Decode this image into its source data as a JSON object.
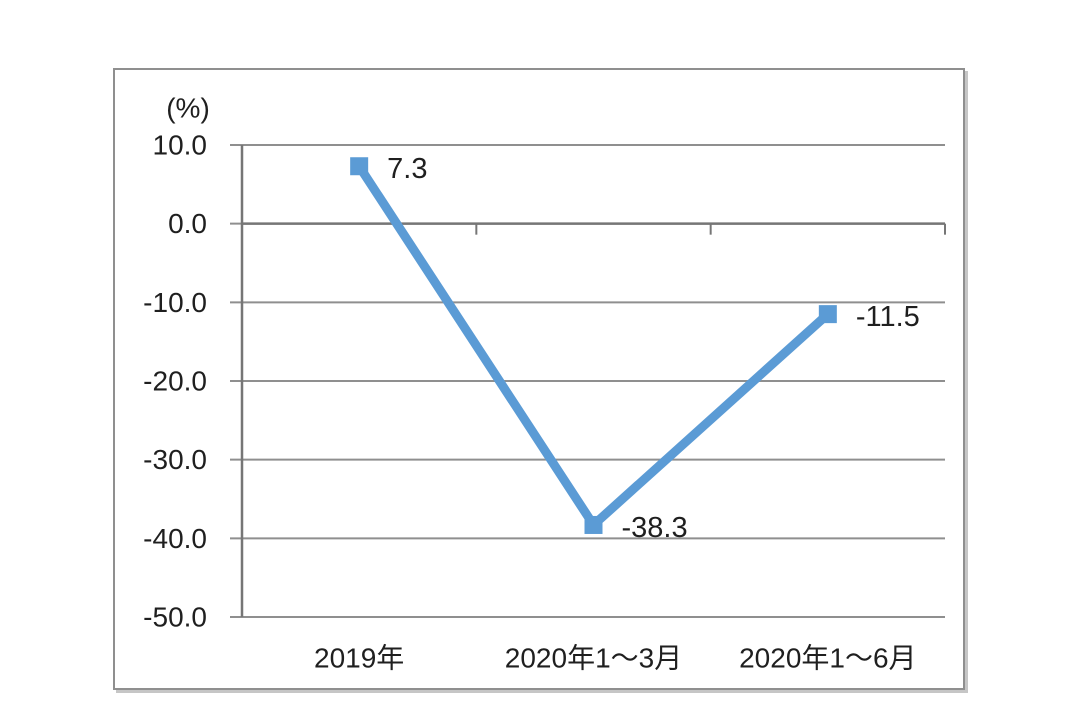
{
  "chart_data": {
    "type": "line",
    "title": "",
    "unit_label": "(%)",
    "categories": [
      "2019年",
      "2020年1～3月",
      "2020年1～6月"
    ],
    "values": [
      7.3,
      -38.3,
      -11.5
    ],
    "data_labels": [
      "7.3",
      "-38.3",
      "-11.5"
    ],
    "ylim": [
      -50,
      10
    ],
    "ytick_step": 10,
    "ytick_labels": [
      "10.0",
      "0.0",
      "-10.0",
      "-20.0",
      "-30.0",
      "-40.0",
      "-50.0"
    ],
    "grid": true,
    "legend": "none",
    "marker": "square",
    "colors": {
      "line": "#5B9BD5",
      "marker": "#5B9BD5",
      "grid": "#8f8f8f",
      "axis": "#767676",
      "text": "#1f1f1f",
      "box_border": "#8f8f8f",
      "background": "#ffffff"
    }
  }
}
